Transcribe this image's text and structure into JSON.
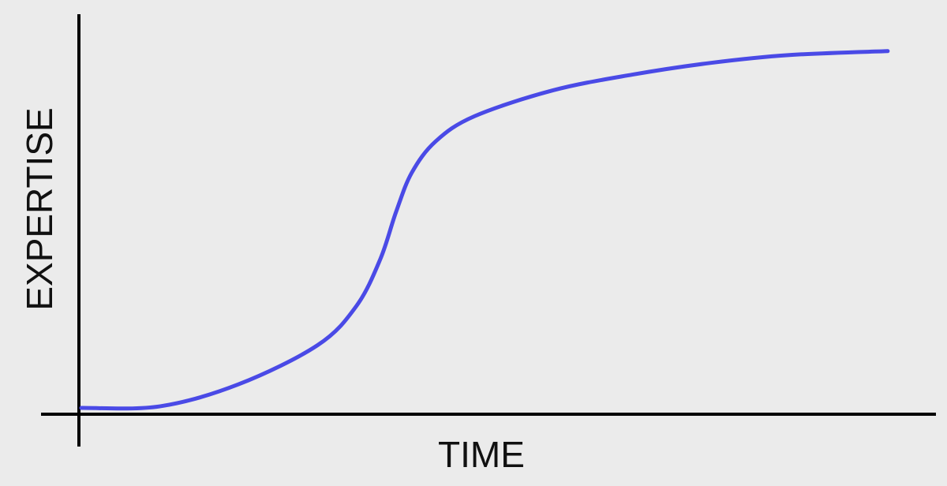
{
  "chart_data": {
    "type": "line",
    "title": "",
    "xlabel": "TIME",
    "ylabel": "EXPERTISE",
    "xlim": [
      0,
      1
    ],
    "ylim": [
      0,
      1
    ],
    "grid": false,
    "ticks": false,
    "line_color": "#4a4ae6",
    "axis_color": "#000000",
    "background": "#ebebeb",
    "series": [
      {
        "x": [
          0.0,
          0.095,
          0.19,
          0.286,
          0.333,
          0.362,
          0.381,
          0.4,
          0.429,
          0.476,
          0.571,
          0.667,
          0.762,
          0.857,
          0.976
        ],
        "y": [
          0.01,
          0.014,
          0.07,
          0.17,
          0.27,
          0.39,
          0.51,
          0.61,
          0.69,
          0.754,
          0.82,
          0.86,
          0.89,
          0.91,
          0.92
        ]
      }
    ]
  }
}
